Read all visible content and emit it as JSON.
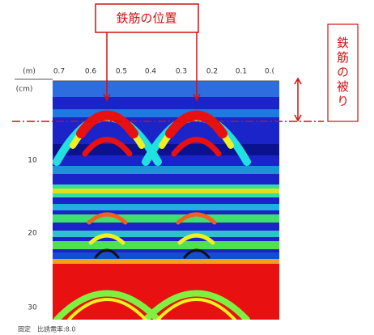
{
  "annotations": {
    "position": "鉄筋の位置",
    "cover": "鉄筋の被り"
  },
  "x_axis": {
    "unit": "(m)",
    "ticks": [
      "0.7",
      "0.6",
      "0.5",
      "0.4",
      "0.3",
      "0.2",
      "0.1",
      "0.("
    ]
  },
  "y_axis": {
    "unit": "(cm)",
    "ticks": [
      "10",
      "20",
      "30"
    ]
  },
  "footer": "固定　比誘電率:8.0"
}
